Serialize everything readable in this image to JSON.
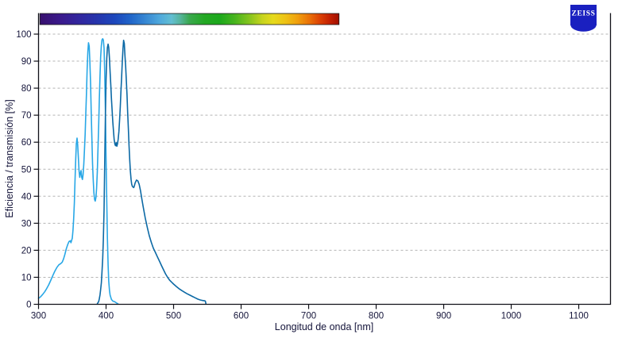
{
  "logo": {
    "text": "ZEISS",
    "bg_color": "#1a20c0"
  },
  "colors": {
    "background": "#ffffff",
    "axis": "#101018",
    "gridline": "#b4b4b4",
    "label_text": "#14143a",
    "curve1": "#28a7e6",
    "curve2": "#0c69a5"
  },
  "chart_data": {
    "type": "line",
    "title": "",
    "xlabel": "Longitud de onda [nm]",
    "ylabel": "Eficiencia / transmisión [%]",
    "xlim": [
      300,
      1147
    ],
    "ylim": [
      0,
      100
    ],
    "x_ticks": [
      300,
      400,
      500,
      600,
      700,
      800,
      900,
      1000,
      1100
    ],
    "y_ticks": [
      0,
      10,
      20,
      30,
      40,
      50,
      60,
      70,
      80,
      90,
      100
    ],
    "grid": "horizontal-dashed",
    "legend": "none",
    "spectrum_bar": {
      "range_nm": [
        302,
        745
      ],
      "stops": [
        [
          0.0,
          "#38106e"
        ],
        [
          0.07,
          "#3a1a8c"
        ],
        [
          0.13,
          "#32269e"
        ],
        [
          0.19,
          "#2634ac"
        ],
        [
          0.25,
          "#1d47bc"
        ],
        [
          0.3,
          "#2063c8"
        ],
        [
          0.35,
          "#3585d2"
        ],
        [
          0.4,
          "#4fa8dc"
        ],
        [
          0.44,
          "#62bed2"
        ],
        [
          0.47,
          "#55b49a"
        ],
        [
          0.5,
          "#3aa84e"
        ],
        [
          0.55,
          "#23a823"
        ],
        [
          0.6,
          "#1ca81c"
        ],
        [
          0.65,
          "#46b41e"
        ],
        [
          0.7,
          "#85c41e"
        ],
        [
          0.745,
          "#c8d41e"
        ],
        [
          0.78,
          "#e6da1c"
        ],
        [
          0.82,
          "#eec315"
        ],
        [
          0.86,
          "#f0a10e"
        ],
        [
          0.9,
          "#ea7208"
        ],
        [
          0.935,
          "#dc4204"
        ],
        [
          0.97,
          "#c22002"
        ],
        [
          1.0,
          "#a00e00"
        ]
      ]
    },
    "series": [
      {
        "name": "curve-1-light-blue",
        "color": "#28a7e6",
        "points": [
          [
            300,
            2.2
          ],
          [
            303,
            2.8
          ],
          [
            306,
            3.6
          ],
          [
            309,
            4.6
          ],
          [
            312,
            5.8
          ],
          [
            315,
            7.2
          ],
          [
            318,
            8.8
          ],
          [
            321,
            10.6
          ],
          [
            324,
            12.2
          ],
          [
            327,
            13.6
          ],
          [
            330,
            14.6
          ],
          [
            333,
            15.1
          ],
          [
            335,
            15.6
          ],
          [
            337,
            16.8
          ],
          [
            339,
            18.5
          ],
          [
            341,
            20.5
          ],
          [
            343,
            22
          ],
          [
            345,
            23.2
          ],
          [
            347,
            23.5
          ],
          [
            348,
            22.8
          ],
          [
            350,
            24.5
          ],
          [
            351,
            27.5
          ],
          [
            352,
            31.5
          ],
          [
            353,
            37.5
          ],
          [
            354,
            45.5
          ],
          [
            355,
            53.5
          ],
          [
            356,
            59.5
          ],
          [
            357,
            61.5
          ],
          [
            358,
            59
          ],
          [
            359,
            54
          ],
          [
            360,
            49.5
          ],
          [
            361,
            47
          ],
          [
            362,
            48.5
          ],
          [
            363,
            49.5
          ],
          [
            364,
            47
          ],
          [
            365,
            46.2
          ],
          [
            366,
            48
          ],
          [
            367,
            52
          ],
          [
            368,
            57
          ],
          [
            369,
            63
          ],
          [
            370,
            70.5
          ],
          [
            371,
            78.5
          ],
          [
            372,
            87
          ],
          [
            373,
            93.5
          ],
          [
            374,
            96.8
          ],
          [
            375,
            95.5
          ],
          [
            376,
            90
          ],
          [
            377,
            82
          ],
          [
            378,
            71.5
          ],
          [
            379,
            61
          ],
          [
            380,
            52
          ],
          [
            381,
            45.8
          ],
          [
            382,
            41.3
          ],
          [
            383,
            38.8
          ],
          [
            384,
            38.2
          ],
          [
            385,
            39.6
          ],
          [
            386,
            43
          ],
          [
            387,
            49
          ],
          [
            388,
            57
          ],
          [
            389,
            66
          ],
          [
            390,
            75.5
          ],
          [
            391,
            84.5
          ],
          [
            392,
            91.5
          ],
          [
            393,
            95.8
          ],
          [
            394,
            97.9
          ],
          [
            395,
            98.3
          ],
          [
            396,
            97.8
          ],
          [
            397,
            94.8
          ],
          [
            398,
            86
          ],
          [
            399,
            71.5
          ],
          [
            400,
            54.5
          ],
          [
            401,
            38
          ],
          [
            402,
            24.5
          ],
          [
            403,
            14.5
          ],
          [
            404,
            8.5
          ],
          [
            405,
            5.2
          ],
          [
            406,
            3.4
          ],
          [
            408,
            1.8
          ],
          [
            410,
            1.2
          ],
          [
            413,
            0.9
          ],
          [
            416,
            0.4
          ],
          [
            418,
            0.1
          ]
        ]
      },
      {
        "name": "curve-2-dark-blue",
        "color": "#0c69a5",
        "points": [
          [
            387,
            0.2
          ],
          [
            389,
            1
          ],
          [
            390,
            2
          ],
          [
            391,
            3.5
          ],
          [
            392,
            5.5
          ],
          [
            393,
            8
          ],
          [
            394,
            12
          ],
          [
            395,
            17
          ],
          [
            396,
            24
          ],
          [
            397,
            35
          ],
          [
            398,
            52
          ],
          [
            399,
            70
          ],
          [
            400,
            83
          ],
          [
            401,
            91
          ],
          [
            402,
            95
          ],
          [
            403,
            96.3
          ],
          [
            404,
            95
          ],
          [
            405,
            91
          ],
          [
            406,
            86
          ],
          [
            407,
            81
          ],
          [
            408,
            76
          ],
          [
            409,
            71.5
          ],
          [
            410,
            67.5
          ],
          [
            411,
            64
          ],
          [
            412,
            61
          ],
          [
            413,
            59.3
          ],
          [
            414,
            58.7
          ],
          [
            415,
            59.8
          ],
          [
            416,
            58.5
          ],
          [
            417,
            59.5
          ],
          [
            418,
            61.2
          ],
          [
            419,
            64
          ],
          [
            420,
            68
          ],
          [
            421,
            73
          ],
          [
            422,
            78.5
          ],
          [
            423,
            84
          ],
          [
            424,
            89.5
          ],
          [
            425,
            94.5
          ],
          [
            426,
            97.7
          ],
          [
            427,
            96.5
          ],
          [
            428,
            92
          ],
          [
            429,
            88
          ],
          [
            430,
            83
          ],
          [
            431,
            77.5
          ],
          [
            432,
            71
          ],
          [
            433,
            65
          ],
          [
            434,
            59
          ],
          [
            435,
            53.5
          ],
          [
            436,
            49.3
          ],
          [
            437,
            46.2
          ],
          [
            438,
            44.4
          ],
          [
            439,
            43.6
          ],
          [
            440,
            43.4
          ],
          [
            441,
            43.2
          ],
          [
            442,
            43.9
          ],
          [
            443,
            44.9
          ],
          [
            445,
            46
          ],
          [
            447,
            45.7
          ],
          [
            449,
            44.4
          ],
          [
            451,
            42
          ],
          [
            453,
            38.9
          ],
          [
            455,
            36
          ],
          [
            458,
            32
          ],
          [
            461,
            28.5
          ],
          [
            464,
            25.4
          ],
          [
            467,
            22.9
          ],
          [
            470,
            20.8
          ],
          [
            473,
            19.2
          ],
          [
            476,
            17.6
          ],
          [
            479,
            16
          ],
          [
            482,
            14.4
          ],
          [
            485,
            12.8
          ],
          [
            488,
            11.3
          ],
          [
            491,
            10
          ],
          [
            494,
            9
          ],
          [
            497,
            8.2
          ],
          [
            500,
            7.5
          ],
          [
            504,
            6.6
          ],
          [
            508,
            5.8
          ],
          [
            512,
            5.1
          ],
          [
            516,
            4.5
          ],
          [
            520,
            3.9
          ],
          [
            524,
            3.4
          ],
          [
            528,
            2.9
          ],
          [
            532,
            2.4
          ],
          [
            536,
            1.9
          ],
          [
            540,
            1.6
          ],
          [
            543,
            1.4
          ],
          [
            546,
            1.3
          ],
          [
            547,
            1.2
          ],
          [
            548,
            0.1
          ]
        ]
      }
    ]
  }
}
